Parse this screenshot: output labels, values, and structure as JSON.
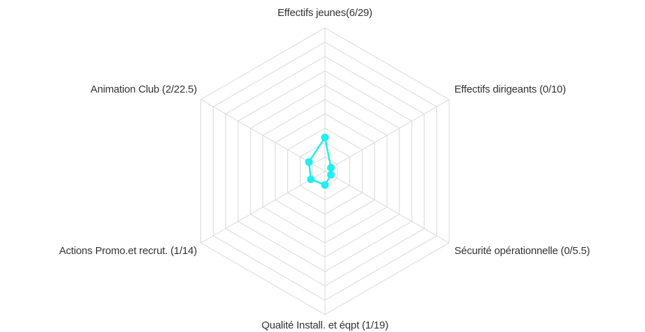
{
  "chart_data": {
    "type": "radar",
    "axes": [
      {
        "label": "Effectifs jeunes(6/29)",
        "value": 6,
        "max": 29
      },
      {
        "label": "Effectifs dirigeants (0/10)",
        "value": 0,
        "max": 10
      },
      {
        "label": "Sécurité opérationnelle (0/5.5)",
        "value": 0,
        "max": 5.5
      },
      {
        "label": "Qualité Install. et éqpt (1/19)",
        "value": 1,
        "max": 19
      },
      {
        "label": "Actions Promo.et recrut. (1/14)",
        "value": 1,
        "max": 14
      },
      {
        "label": "Animation Club (2/22.5)",
        "value": 2,
        "max": 22.5
      }
    ],
    "grid_rings": 10,
    "series_color": "#22eeee",
    "grid_color": "#d9d9d9",
    "label_color": "#333333"
  }
}
